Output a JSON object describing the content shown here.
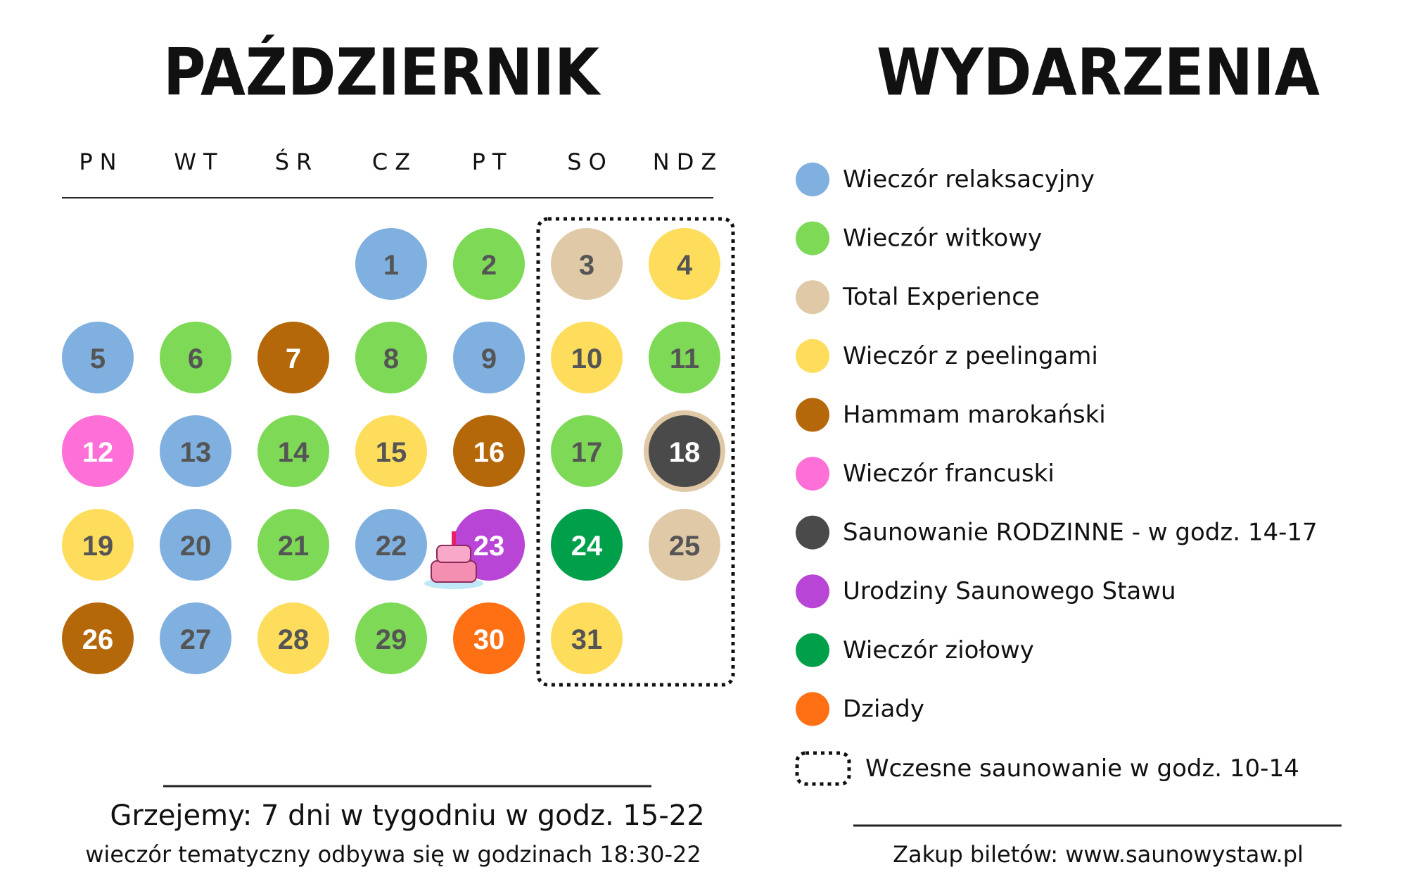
{
  "header": {
    "calendar_title": "PAŹDZIERNIK",
    "events_title": "WYDARZENIA"
  },
  "weekdays": [
    "PN",
    "WT",
    "ŚR",
    "CZ",
    "PT",
    "SO",
    "NDZ"
  ],
  "weeks": [
    [
      null,
      null,
      null,
      {
        "day": 1,
        "event": 0
      },
      {
        "day": 2,
        "event": 1
      },
      {
        "day": 3,
        "event": 2
      },
      {
        "day": 4,
        "event": 3
      }
    ],
    [
      {
        "day": 5,
        "event": 0
      },
      {
        "day": 6,
        "event": 1
      },
      {
        "day": 7,
        "event": 4
      },
      {
        "day": 8,
        "event": 1
      },
      {
        "day": 9,
        "event": 0
      },
      {
        "day": 10,
        "event": 3
      },
      {
        "day": 11,
        "event": 1
      }
    ],
    [
      {
        "day": 12,
        "event": 5
      },
      {
        "day": 13,
        "event": 0
      },
      {
        "day": 14,
        "event": 1
      },
      {
        "day": 15,
        "event": 3
      },
      {
        "day": 16,
        "event": 4
      },
      {
        "day": 17,
        "event": 1
      },
      {
        "day": 18,
        "event": 6,
        "ring_event": 2
      }
    ],
    [
      {
        "day": 19,
        "event": 3
      },
      {
        "day": 20,
        "event": 0
      },
      {
        "day": 21,
        "event": 1
      },
      {
        "day": 22,
        "event": 0
      },
      {
        "day": 23,
        "event": 7
      },
      {
        "day": 24,
        "event": 8
      },
      {
        "day": 25,
        "event": 2
      }
    ],
    [
      {
        "day": 26,
        "event": 4
      },
      {
        "day": 27,
        "event": 0
      },
      {
        "day": 28,
        "event": 3
      },
      {
        "day": 29,
        "event": 1
      },
      {
        "day": 30,
        "event": 9
      },
      {
        "day": 31,
        "event": 3
      },
      null
    ]
  ],
  "events": [
    {
      "label": "Wieczór relaksacyjny",
      "color": "#7fb0e0",
      "text_color": "#555555"
    },
    {
      "label": "Wieczór witkowy",
      "color": "#7ed957",
      "text_color": "#555555"
    },
    {
      "label": "Total Experience",
      "color": "#dfc9a6",
      "text_color": "#555555"
    },
    {
      "label": "Wieczór z peelingami",
      "color": "#fedd5c",
      "text_color": "#555555"
    },
    {
      "label": "Hammam marokański",
      "color": "#b5680a",
      "text_color": "#ffffff"
    },
    {
      "label": "Wieczór francuski",
      "color": "#ff6fd8",
      "text_color": "#ffffff"
    },
    {
      "label": "Saunowanie RODZINNE - w godz. 14-17",
      "color": "#4a4a4a",
      "text_color": "#ffffff"
    },
    {
      "label": "Urodziny Saunowego Stawu",
      "color": "#b845d6",
      "text_color": "#ffffff"
    },
    {
      "label": "Wieczór ziołowy",
      "color": "#00a04b",
      "text_color": "#ffffff"
    },
    {
      "label": "Dziady",
      "color": "#ff6f14",
      "text_color": "#ffffff"
    }
  ],
  "early_sauna": "Wczesne saunowanie w godz. 10-14",
  "footer": {
    "hours": "Grzejemy: 7 dni w tygodniu w godz. 15-22",
    "theme_hours": "wieczór tematyczny odbywa się w godzinach 18:30-22",
    "tickets": "Zakup biletów: www.saunowystaw.pl"
  }
}
